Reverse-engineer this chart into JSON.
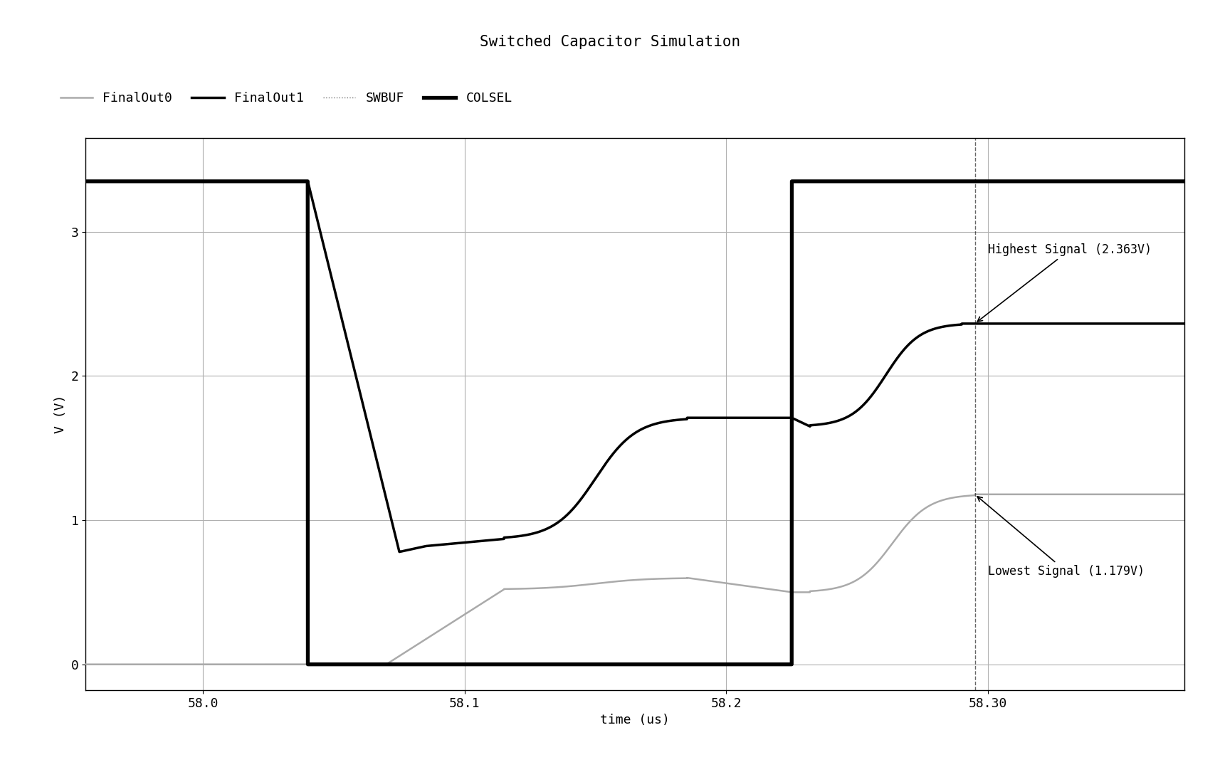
{
  "title": "Switched Capacitor Simulation",
  "xlabel": "time (us)",
  "ylabel": "V (V)",
  "xlim": [
    57.955,
    58.375
  ],
  "ylim": [
    -0.18,
    3.65
  ],
  "xticks": [
    58.0,
    58.1,
    58.2,
    58.3
  ],
  "xtick_labels": [
    "58.0",
    "58.1",
    "58.2",
    "58.30"
  ],
  "yticks": [
    0,
    1,
    2,
    3
  ],
  "ytick_labels": [
    "0",
    "1",
    "2",
    "3"
  ],
  "annotation_high": "Highest Signal (2.363V)",
  "annotation_low": "Lowest Signal (1.179V)",
  "high_val": 2.363,
  "low_val": 1.179,
  "colsel_fall": 58.04,
  "colsel_rise": 58.225,
  "colsel_high": 3.35,
  "swbuf_fall": 58.04,
  "swbuf_rise": 58.225,
  "swbuf_high": 3.35,
  "background_color": "#ffffff",
  "grid_color": "#b0b0b0",
  "title_fontsize": 15,
  "label_fontsize": 13,
  "tick_fontsize": 13
}
